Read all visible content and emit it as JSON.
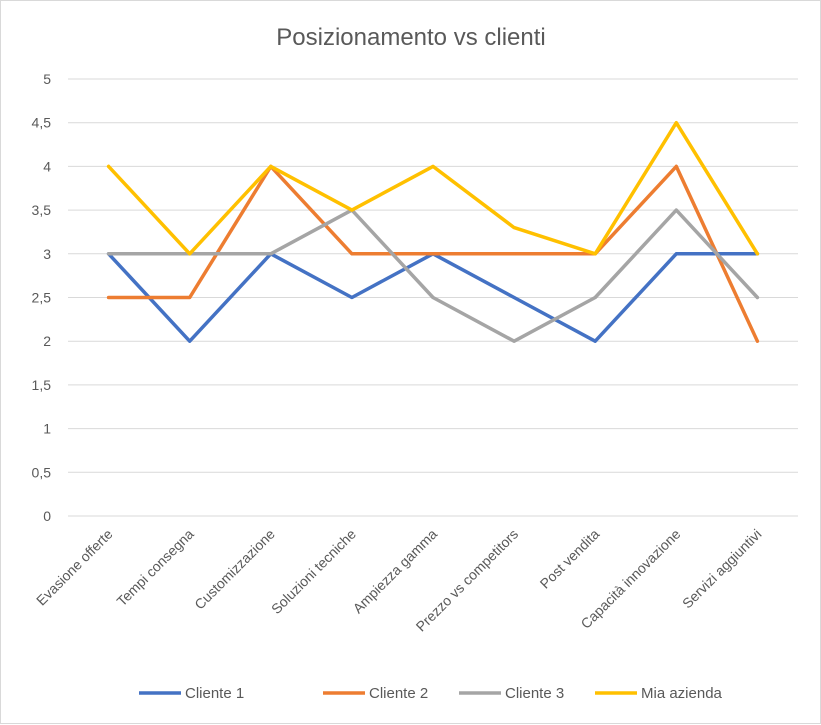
{
  "chart_data": {
    "type": "line",
    "title": "Posizionamento vs clienti",
    "categories": [
      "Evasione offerte",
      "Tempi consegna",
      "Customizzazione",
      "Soluzioni tecniche",
      "Ampiezza gamma",
      "Prezzo vs competitors",
      "Post vendita",
      "Capacità innovazione",
      "Servizi aggiuntivi"
    ],
    "series": [
      {
        "name": "Cliente 1",
        "color": "#4472C4",
        "values": [
          3,
          2,
          3,
          2.5,
          3,
          2.5,
          2,
          3,
          3
        ]
      },
      {
        "name": "Cliente 2",
        "color": "#ED7D31",
        "values": [
          2.5,
          2.5,
          4,
          3,
          3,
          3,
          3,
          4,
          2
        ]
      },
      {
        "name": "Cliente 3",
        "color": "#A5A5A5",
        "values": [
          3,
          3,
          3,
          3.5,
          2.5,
          2,
          2.5,
          3.5,
          2.5
        ]
      },
      {
        "name": "Mia azienda",
        "color": "#FFC000",
        "values": [
          4,
          3,
          4,
          3.5,
          4,
          3.3,
          3,
          4.5,
          3
        ]
      }
    ],
    "y_ticks": [
      "0",
      "0,5",
      "1",
      "1,5",
      "2",
      "2,5",
      "3",
      "3,5",
      "4",
      "4,5",
      "5"
    ],
    "ylim": [
      0,
      5
    ],
    "grid": true,
    "legend_position": "bottom"
  }
}
